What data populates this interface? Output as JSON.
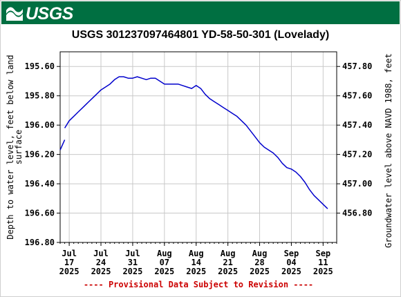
{
  "header": {
    "logo_text": "USGS",
    "title": "USGS 301237097464801 YD-58-50-301 (Lovelady)"
  },
  "colors": {
    "banner": "#006f41",
    "series": "#0000cc",
    "footnote": "#cc0000"
  },
  "chart_data": {
    "type": "line",
    "title": "USGS 301237097464801 YD-58-50-301 (Lovelady)",
    "ylabel": "Depth to water level, feet below land surface",
    "ylabel_lines": [
      "Depth to water level, feet below land",
      "surface"
    ],
    "y2label": "Groundwater level above NAVD 1988, feet",
    "ylim": [
      196.8,
      195.5
    ],
    "y_inverted": true,
    "y2lim": [
      456.6,
      457.9
    ],
    "yticks": [
      "195.60",
      "195.80",
      "196.00",
      "196.20",
      "196.40",
      "196.60",
      "196.80"
    ],
    "y2ticks": [
      "457.80",
      "457.60",
      "457.40",
      "457.20",
      "457.00",
      "456.80"
    ],
    "x_range_days": [
      "2025-07-15",
      "2025-09-14"
    ],
    "xticks": [
      {
        "date": "2025-07-17",
        "month": "Jul",
        "day": "17",
        "year": "2025"
      },
      {
        "date": "2025-07-24",
        "month": "Jul",
        "day": "24",
        "year": "2025"
      },
      {
        "date": "2025-07-31",
        "month": "Jul",
        "day": "31",
        "year": "2025"
      },
      {
        "date": "2025-08-07",
        "month": "Aug",
        "day": "07",
        "year": "2025"
      },
      {
        "date": "2025-08-14",
        "month": "Aug",
        "day": "14",
        "year": "2025"
      },
      {
        "date": "2025-08-21",
        "month": "Aug",
        "day": "21",
        "year": "2025"
      },
      {
        "date": "2025-08-28",
        "month": "Aug",
        "day": "28",
        "year": "2025"
      },
      {
        "date": "2025-09-04",
        "month": "Sep",
        "day": "04",
        "year": "2025"
      },
      {
        "date": "2025-09-11",
        "month": "Sep",
        "day": "11",
        "year": "2025"
      }
    ],
    "grid": true,
    "series": [
      {
        "segments": [
          [
            [
              "2025-07-15",
              196.17
            ],
            [
              "2025-07-16",
              196.1
            ]
          ],
          [
            [
              "2025-07-16",
              196.02
            ],
            [
              "2025-07-17",
              195.97
            ],
            [
              "2025-07-18",
              195.94
            ],
            [
              "2025-07-19",
              195.91
            ],
            [
              "2025-07-20",
              195.88
            ],
            [
              "2025-07-21",
              195.85
            ],
            [
              "2025-07-22",
              195.82
            ],
            [
              "2025-07-23",
              195.79
            ],
            [
              "2025-07-24",
              195.76
            ],
            [
              "2025-07-25",
              195.74
            ],
            [
              "2025-07-26",
              195.72
            ],
            [
              "2025-07-27",
              195.69
            ],
            [
              "2025-07-28",
              195.67
            ],
            [
              "2025-07-29",
              195.67
            ],
            [
              "2025-07-30",
              195.68
            ],
            [
              "2025-07-31",
              195.68
            ],
            [
              "2025-08-01",
              195.67
            ],
            [
              "2025-08-02",
              195.68
            ],
            [
              "2025-08-03",
              195.69
            ],
            [
              "2025-08-04",
              195.68
            ],
            [
              "2025-08-05",
              195.68
            ],
            [
              "2025-08-06",
              195.7
            ],
            [
              "2025-08-07",
              195.72
            ],
            [
              "2025-08-08",
              195.72
            ],
            [
              "2025-08-09",
              195.72
            ],
            [
              "2025-08-10",
              195.72
            ],
            [
              "2025-08-11",
              195.73
            ],
            [
              "2025-08-12",
              195.74
            ],
            [
              "2025-08-13",
              195.75
            ],
            [
              "2025-08-14",
              195.73
            ],
            [
              "2025-08-15",
              195.75
            ],
            [
              "2025-08-16",
              195.79
            ],
            [
              "2025-08-17",
              195.82
            ],
            [
              "2025-08-18",
              195.84
            ],
            [
              "2025-08-19",
              195.86
            ],
            [
              "2025-08-20",
              195.88
            ],
            [
              "2025-08-21",
              195.9
            ],
            [
              "2025-08-22",
              195.92
            ],
            [
              "2025-08-23",
              195.94
            ],
            [
              "2025-08-24",
              195.97
            ],
            [
              "2025-08-25",
              196.0
            ],
            [
              "2025-08-26",
              196.04
            ],
            [
              "2025-08-27",
              196.08
            ],
            [
              "2025-08-28",
              196.12
            ],
            [
              "2025-08-29",
              196.15
            ],
            [
              "2025-08-30",
              196.17
            ],
            [
              "2025-08-31",
              196.19
            ],
            [
              "2025-09-01",
              196.22
            ],
            [
              "2025-09-02",
              196.26
            ],
            [
              "2025-09-03",
              196.29
            ],
            [
              "2025-09-04",
              196.3
            ],
            [
              "2025-09-05",
              196.32
            ],
            [
              "2025-09-06",
              196.35
            ],
            [
              "2025-09-07",
              196.39
            ],
            [
              "2025-09-08",
              196.44
            ],
            [
              "2025-09-09",
              196.48
            ],
            [
              "2025-09-10",
              196.51
            ],
            [
              "2025-09-11",
              196.54
            ],
            [
              "2025-09-12",
              196.57
            ]
          ]
        ]
      }
    ],
    "footnote": "---- Provisional Data Subject to Revision ----"
  }
}
